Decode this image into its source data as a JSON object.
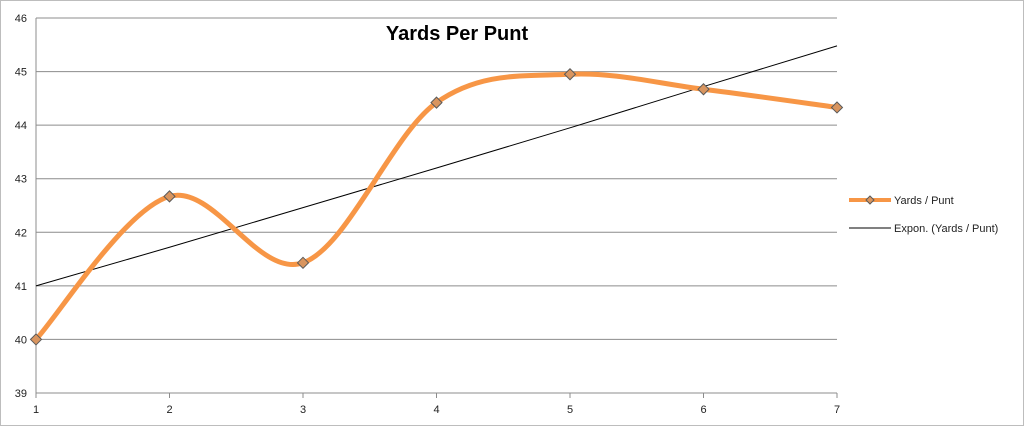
{
  "chart_data": {
    "type": "line",
    "title": "Yards Per Punt",
    "x": [
      1,
      2,
      3,
      4,
      5,
      6,
      7
    ],
    "xlabel": "",
    "ylabel": "",
    "xlim": [
      1,
      7
    ],
    "ylim": [
      39,
      46
    ],
    "yticks": [
      39,
      40,
      41,
      42,
      43,
      44,
      45,
      46
    ],
    "xticks": [
      1,
      2,
      3,
      4,
      5,
      6,
      7
    ],
    "grid": "horizontal",
    "legend_position": "right",
    "series": [
      {
        "name": "Yards / Punt",
        "values": [
          40.0,
          42.67,
          41.43,
          44.42,
          44.95,
          44.67,
          44.33
        ],
        "color": "#f79646",
        "marker": "diamond",
        "smooth": true
      },
      {
        "name": "Expon. (Yards / Punt)",
        "kind": "trendline",
        "values": [
          41.0,
          41.72,
          42.46,
          43.2,
          43.95,
          44.72,
          45.48
        ],
        "color": "#000000"
      }
    ]
  }
}
